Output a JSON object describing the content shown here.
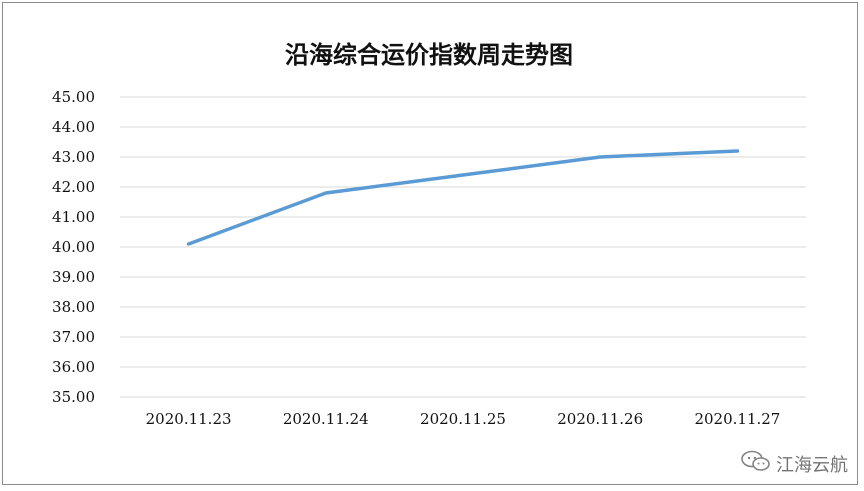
{
  "chart_data": {
    "type": "line",
    "title": "沿海综合运价指数周走势图",
    "xlabel": "",
    "ylabel": "",
    "categories": [
      "2020.11.23",
      "2020.11.24",
      "2020.11.25",
      "2020.11.26",
      "2020.11.27"
    ],
    "series": [
      {
        "values": [
          40.1,
          41.8,
          42.4,
          43.0,
          43.2
        ],
        "color": "#5b9bd5"
      }
    ],
    "yticks": [
      "35.00",
      "36.00",
      "37.00",
      "38.00",
      "39.00",
      "40.00",
      "41.00",
      "42.00",
      "43.00",
      "44.00",
      "45.00"
    ],
    "ylim": [
      35,
      45
    ],
    "grid": true,
    "legend": "none"
  },
  "watermark": {
    "text": "江海云航",
    "icon": "wechat-icon"
  }
}
